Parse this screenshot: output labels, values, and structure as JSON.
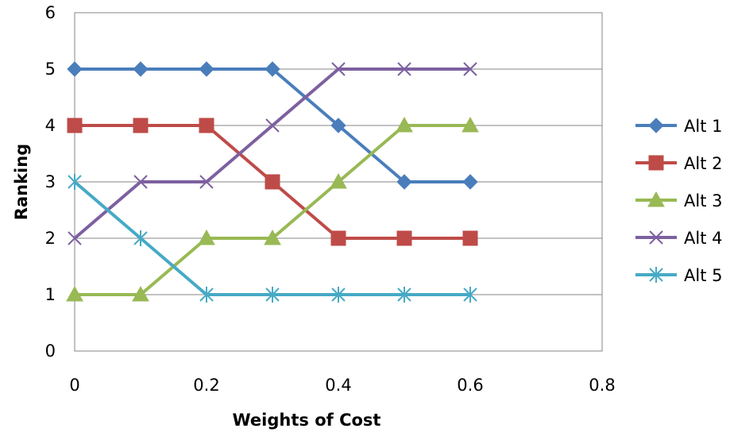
{
  "chart_data": {
    "type": "line",
    "xlabel": "Weights of Cost",
    "ylabel": "Ranking",
    "xlim": [
      0,
      0.8
    ],
    "ylim": [
      0,
      6
    ],
    "x_ticks": [
      "0",
      "0.2",
      "0.4",
      "0.6",
      "0.8"
    ],
    "y_ticks": [
      "0",
      "1",
      "2",
      "3",
      "4",
      "5",
      "6"
    ],
    "grid": "horizontal",
    "legend_position": "right",
    "x": [
      0,
      0.1,
      0.2,
      0.3,
      0.4,
      0.5,
      0.6
    ],
    "series": [
      {
        "name": "Alt 1",
        "values": [
          5,
          5,
          5,
          5,
          4,
          3,
          3
        ],
        "color": "#4a7ebb",
        "marker": "diamond"
      },
      {
        "name": "Alt 2",
        "values": [
          4,
          4,
          4,
          3,
          2,
          2,
          2
        ],
        "color": "#be4b48",
        "marker": "square"
      },
      {
        "name": "Alt 3",
        "values": [
          1,
          1,
          2,
          2,
          3,
          4,
          4
        ],
        "color": "#98b954",
        "marker": "triangle"
      },
      {
        "name": "Alt 4",
        "values": [
          2,
          3,
          3,
          4,
          5,
          5,
          5
        ],
        "color": "#7d60a0",
        "marker": "x"
      },
      {
        "name": "Alt 5",
        "values": [
          3,
          2,
          1,
          1,
          1,
          1,
          1
        ],
        "color": "#46aac5",
        "marker": "star"
      }
    ]
  }
}
